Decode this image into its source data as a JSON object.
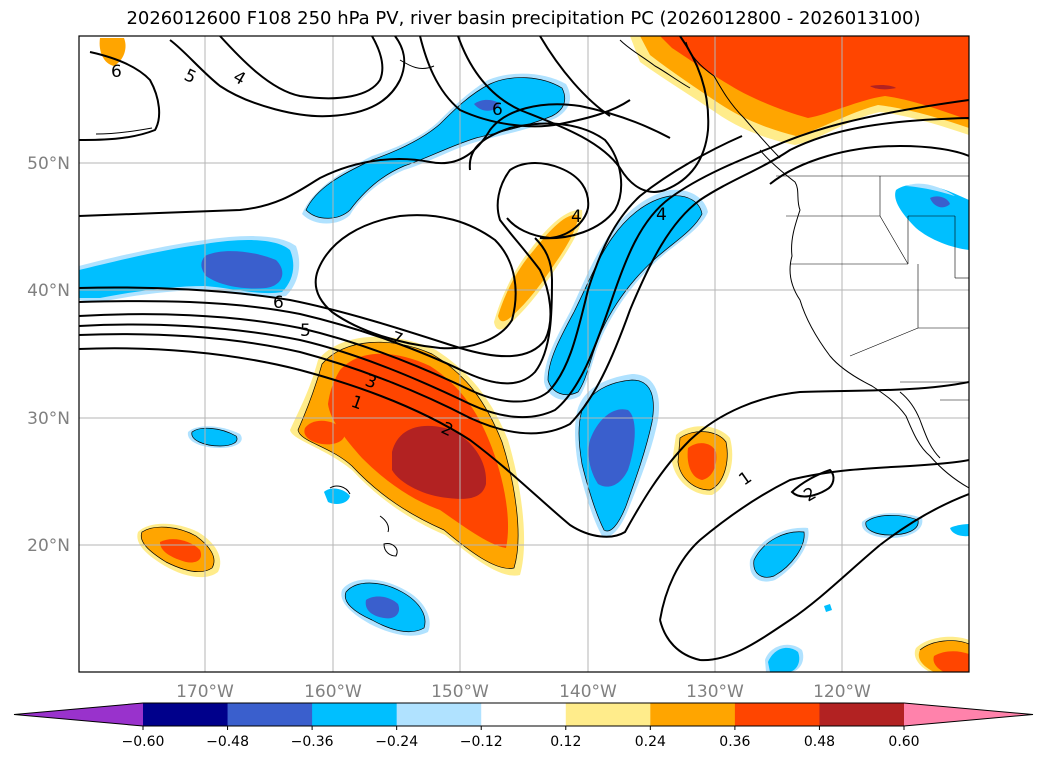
{
  "title": "2026012600 F108 250 hPa PV, river basin precipitation PC (2026012800 - 2026013100)",
  "lon_labels": [
    "170°W",
    "160°W",
    "150°W",
    "140°W",
    "130°W",
    "120°W"
  ],
  "lat_labels": [
    "50°N",
    "40°N",
    "30°N",
    "20°N"
  ],
  "colorbar": {
    "ticks": [
      "−0.60",
      "−0.48",
      "−0.36",
      "−0.24",
      "−0.12",
      "0.12",
      "0.24",
      "0.36",
      "0.48",
      "0.60"
    ],
    "colors": [
      "#9932cc",
      "#00008b",
      "#3a5fcd",
      "#00bfff",
      "#b0e2ff",
      "#ffffff",
      "#ffec8b",
      "#ffa500",
      "#ff4500",
      "#b22222",
      "#ff82ab"
    ]
  },
  "contour_labels": [
    "6",
    "5",
    "4",
    "6",
    "4",
    "6",
    "5",
    "7",
    "3",
    "1",
    "2",
    "1",
    "2"
  ],
  "colors": {
    "neg_light": "#b0e2ff",
    "neg_mid": "#00bfff",
    "neg_strong": "#3a5fcd",
    "pos_light": "#ffec8b",
    "pos_mid": "#ffa500",
    "pos_strong": "#ff4500",
    "pos_max": "#b22222"
  }
}
